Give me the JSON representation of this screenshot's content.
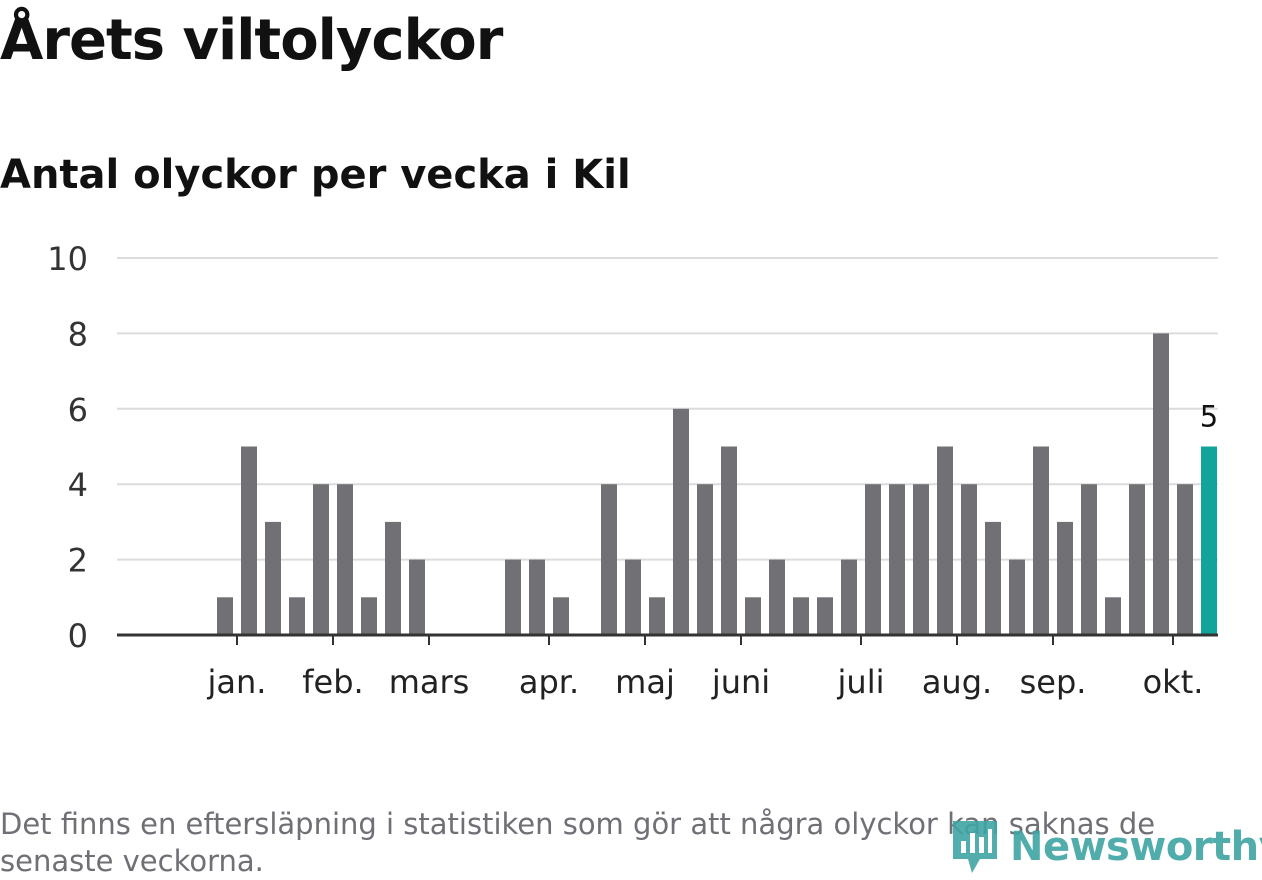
{
  "header": {
    "title": "Årets viltolyckor",
    "subtitle": "Antal olyckor per vecka i Kil"
  },
  "footer": {
    "note": "Det finns en eftersläpning i statistiken som gör att några olyckor kan saknas de senaste veckorna.",
    "brand": "Newsworthy"
  },
  "colors": {
    "bar": "#707075",
    "highlight": "#12a39a",
    "grid": "#dcdcdc",
    "axis": "#333333",
    "brand": "#3fa4a4"
  },
  "chart_data": {
    "type": "bar",
    "title": "Antal olyckor per vecka i Kil",
    "xlabel": "",
    "ylabel": "",
    "ylim": [
      0,
      10
    ],
    "yticks": [
      0,
      2,
      4,
      6,
      8,
      10
    ],
    "grid": true,
    "values": [
      0,
      0,
      1,
      5,
      3,
      1,
      4,
      4,
      1,
      3,
      2,
      0,
      0,
      0,
      2,
      2,
      1,
      0,
      4,
      2,
      1,
      6,
      4,
      5,
      1,
      2,
      1,
      1,
      2,
      4,
      4,
      4,
      5,
      4,
      3,
      2,
      5,
      3,
      4,
      1,
      4,
      8,
      4,
      5
    ],
    "highlight_index": 43,
    "highlight_label": "5",
    "month_ticks": [
      {
        "label": "jan.",
        "index": 2.5
      },
      {
        "label": "feb.",
        "index": 6.5
      },
      {
        "label": "mars",
        "index": 10.5
      },
      {
        "label": "apr.",
        "index": 15.5
      },
      {
        "label": "maj",
        "index": 19.5
      },
      {
        "label": "juni",
        "index": 23.5
      },
      {
        "label": "juli",
        "index": 28.5
      },
      {
        "label": "aug.",
        "index": 32.5
      },
      {
        "label": "sep.",
        "index": 36.5
      },
      {
        "label": "okt.",
        "index": 41.5
      }
    ]
  }
}
